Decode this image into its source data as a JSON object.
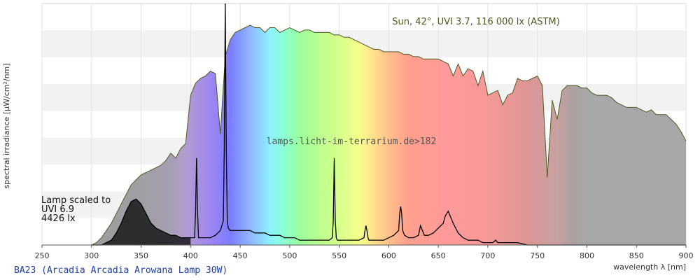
{
  "chart_data": {
    "type": "area",
    "title": "BA23 (Arcadia Arcadia Arowana Lamp 30W)",
    "xlabel": "wavelength λ [nm]",
    "ylabel": "spectral irradiance [µW/cm²/nm]",
    "xlim": [
      250,
      900
    ],
    "ylim": [
      0,
      100
    ],
    "x_ticks": [
      250,
      300,
      350,
      400,
      450,
      500,
      550,
      600,
      650,
      700,
      750,
      800,
      850,
      900
    ],
    "grid": true,
    "legend": "none",
    "watermark": "lamps.licht-im-terrarium.de>182",
    "annotations": {
      "sun": "Sun, 42°, UVI 3.7, 116 000 lx (ASTM)",
      "lamp_line1": "Lamp scaled to",
      "lamp_line2": "UVI 6.9",
      "lamp_line3": "4426 lx"
    },
    "series": [
      {
        "x": [
          300,
          305,
          310,
          315,
          320,
          325,
          330,
          335,
          340,
          345,
          350,
          355,
          360,
          365,
          370,
          375,
          380,
          385,
          390,
          395,
          400,
          405,
          410,
          415,
          420,
          425,
          430,
          435,
          440,
          445,
          450,
          455,
          460,
          465,
          470,
          475,
          480,
          485,
          490,
          495,
          500,
          505,
          510,
          515,
          520,
          525,
          530,
          535,
          540,
          545,
          550,
          555,
          560,
          565,
          570,
          575,
          580,
          585,
          590,
          595,
          600,
          605,
          610,
          615,
          620,
          625,
          630,
          635,
          640,
          645,
          650,
          655,
          660,
          665,
          670,
          675,
          680,
          685,
          690,
          695,
          700,
          705,
          710,
          715,
          720,
          725,
          730,
          735,
          740,
          745,
          750,
          755,
          760,
          765,
          770,
          775,
          780,
          785,
          790,
          795,
          800,
          805,
          810,
          815,
          820,
          825,
          830,
          835,
          840,
          845,
          850,
          855,
          860,
          865,
          870,
          875,
          880,
          885,
          890,
          895,
          900
        ],
        "values": [
          0,
          1,
          3,
          6,
          9,
          13,
          17,
          21,
          25,
          27,
          29,
          30,
          31,
          32,
          33,
          35,
          38,
          36,
          40,
          42,
          62,
          67,
          69,
          70,
          72,
          71,
          46,
          78,
          85,
          88,
          89,
          90,
          91,
          90,
          90,
          88,
          90,
          90,
          88,
          89,
          90,
          89,
          88,
          89,
          89,
          88,
          88,
          88,
          88,
          87,
          87,
          86,
          86,
          85,
          84,
          83,
          82,
          81,
          81,
          80,
          80,
          80,
          80,
          79,
          79,
          78,
          78,
          77,
          77,
          77,
          77,
          76,
          75,
          70,
          75,
          70,
          73,
          72,
          66,
          72,
          62,
          63,
          64,
          58,
          62,
          63,
          69,
          68,
          68,
          69,
          70,
          66,
          28,
          60,
          52,
          64,
          66,
          66,
          66,
          65,
          65,
          63,
          62,
          62,
          62,
          61,
          59,
          58,
          57,
          57,
          57,
          56,
          55,
          56,
          54,
          54,
          54,
          52,
          50,
          47,
          43
        ]
      },
      {
        "x": [
          300,
          305,
          310,
          315,
          320,
          325,
          330,
          335,
          340,
          345,
          350,
          355,
          360,
          365,
          370,
          375,
          380,
          385,
          390,
          395,
          400,
          404,
          405,
          406,
          407,
          408,
          410,
          415,
          420,
          425,
          430,
          433,
          434,
          435,
          436,
          437,
          438,
          440,
          445,
          450,
          455,
          460,
          465,
          470,
          475,
          480,
          485,
          490,
          495,
          500,
          505,
          510,
          515,
          520,
          525,
          530,
          535,
          540,
          543,
          544,
          545,
          546,
          547,
          548,
          550,
          555,
          560,
          565,
          570,
          575,
          576,
          577,
          578,
          579,
          580,
          585,
          590,
          595,
          600,
          605,
          610,
          611,
          612,
          613,
          614,
          616,
          620,
          625,
          630,
          631,
          632,
          634,
          636,
          640,
          645,
          650,
          655,
          657,
          660,
          662,
          665,
          670,
          675,
          680,
          685,
          690,
          695,
          700,
          705,
          708,
          710,
          715,
          720,
          730,
          740,
          750,
          760,
          770,
          780,
          790,
          800,
          850,
          900
        ],
        "values": [
          0,
          0,
          0,
          1,
          2,
          5,
          9,
          14,
          18,
          19,
          17,
          13,
          9,
          7,
          6,
          5,
          4,
          4,
          3,
          3,
          3,
          3,
          14,
          36,
          14,
          3,
          3,
          3,
          3,
          4,
          6,
          10,
          40,
          100,
          40,
          10,
          7,
          6,
          6,
          6,
          6,
          6,
          5,
          5,
          5,
          4,
          4,
          4,
          3,
          3,
          3,
          2,
          2,
          2,
          2,
          2,
          2,
          2,
          3,
          10,
          36,
          10,
          3,
          2,
          2,
          2,
          2,
          2,
          2,
          3,
          6,
          8,
          6,
          3,
          2,
          2,
          2,
          2,
          3,
          4,
          6,
          13,
          16,
          13,
          6,
          4,
          3,
          3,
          4,
          6,
          8,
          6,
          4,
          4,
          5,
          7,
          9,
          12,
          14,
          12,
          9,
          5,
          3,
          2,
          2,
          2,
          1,
          1,
          1,
          2,
          1,
          1,
          1,
          1,
          0,
          0,
          0,
          0,
          0,
          0,
          0,
          0,
          0
        ]
      }
    ]
  }
}
